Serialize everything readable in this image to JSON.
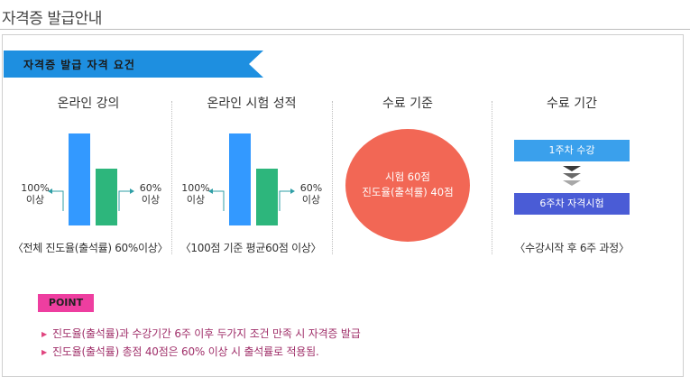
{
  "page_title": "자격증 발급안내",
  "banner": "자격증 발급 자격 요건",
  "col1": {
    "title": "온라인 강의",
    "left_value": "100%",
    "left_label": "이상",
    "right_value": "60%",
    "right_label": "이상",
    "caption": "〈전체 진도율(출석률) 60%이상〉"
  },
  "col2": {
    "title": "온라인 시험 성적",
    "left_value": "100%",
    "left_label": "이상",
    "right_value": "60%",
    "right_label": "이상",
    "caption": "〈100점 기준 평균60점 이상〉"
  },
  "col3": {
    "title": "수료 기준",
    "line1": "시험 60점",
    "line2": "진도율(출석률) 40점"
  },
  "col4": {
    "title": "수료 기간",
    "step1": "1주차 수강",
    "step2": "6주차 자격시험",
    "caption": "〈수강시작 후 6주 과정〉"
  },
  "point": {
    "label": "POINT",
    "bullets": [
      "진도율(출석률)과 수강기간 6주 이후 두가지 조건 만족 시 자격증 발급",
      "진도율(출석률) 총점 40점은 60% 이상 시 출석률로 적용됨."
    ]
  },
  "colors": {
    "banner_blue": "#1e8fe0",
    "bar_blue": "#3399ff",
    "bar_green": "#2db67c",
    "arrow_teal": "#2f9fa6",
    "circle_red": "#f26755",
    "step_blue": "#3aa0ec",
    "step_indigo": "#4a5cd6",
    "point_pink": "#ee3ea0"
  },
  "icons": [
    "right-arrow-icon",
    "triangle-down-icon",
    "bullet-arrow-icon"
  ]
}
